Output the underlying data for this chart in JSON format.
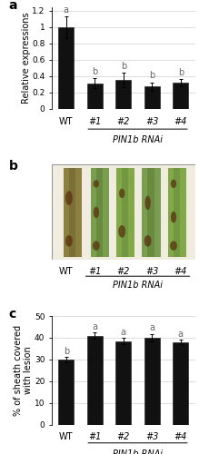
{
  "panel_a": {
    "categories": [
      "WT",
      "#1",
      "#2",
      "#3",
      "#4"
    ],
    "values": [
      1.0,
      0.31,
      0.35,
      0.27,
      0.32
    ],
    "errors": [
      0.13,
      0.06,
      0.09,
      0.05,
      0.04
    ],
    "ylabel": "Relative expressions",
    "ylim": [
      0,
      1.25
    ],
    "yticks": [
      0,
      0.2,
      0.4,
      0.6,
      0.8,
      1.0,
      1.2
    ],
    "ytick_labels": [
      "0",
      "0.2",
      "0.4",
      "0.6",
      "0.8",
      "1",
      "1.2"
    ],
    "sig_labels": [
      "a",
      "b",
      "b",
      "b",
      "b"
    ],
    "bar_color": "#111111",
    "rnai_label": "PIN1b RNAi",
    "panel_label": "a"
  },
  "panel_c": {
    "categories": [
      "WT",
      "#1",
      "#2",
      "#3",
      "#4"
    ],
    "values": [
      30.0,
      41.0,
      38.5,
      40.0,
      38.0
    ],
    "errors": [
      1.2,
      1.5,
      1.3,
      1.8,
      1.0
    ],
    "ylabel": "% of sheath covered\nwith lesion",
    "ylim": [
      0,
      50
    ],
    "yticks": [
      0,
      10,
      20,
      30,
      40,
      50
    ],
    "ytick_labels": [
      "0",
      "10",
      "20",
      "30",
      "40",
      "50"
    ],
    "sig_labels": [
      "b",
      "a",
      "a",
      "a",
      "a"
    ],
    "bar_color": "#111111",
    "rnai_label": "PIN1b RNAi",
    "panel_label": "c"
  },
  "panel_b_label": "b",
  "photo_wt_label": "WT",
  "photo_rnai_cats": [
    "#1",
    "#2",
    "#3",
    "#4"
  ],
  "photo_rnai_label": "PIN1b RNAi",
  "figure_bg": "#ffffff",
  "bar_width": 0.55,
  "label_fontsize": 7,
  "tick_fontsize": 6.5,
  "sig_fontsize": 7,
  "panel_letter_fontsize": 10,
  "xtick_fontsize": 7
}
